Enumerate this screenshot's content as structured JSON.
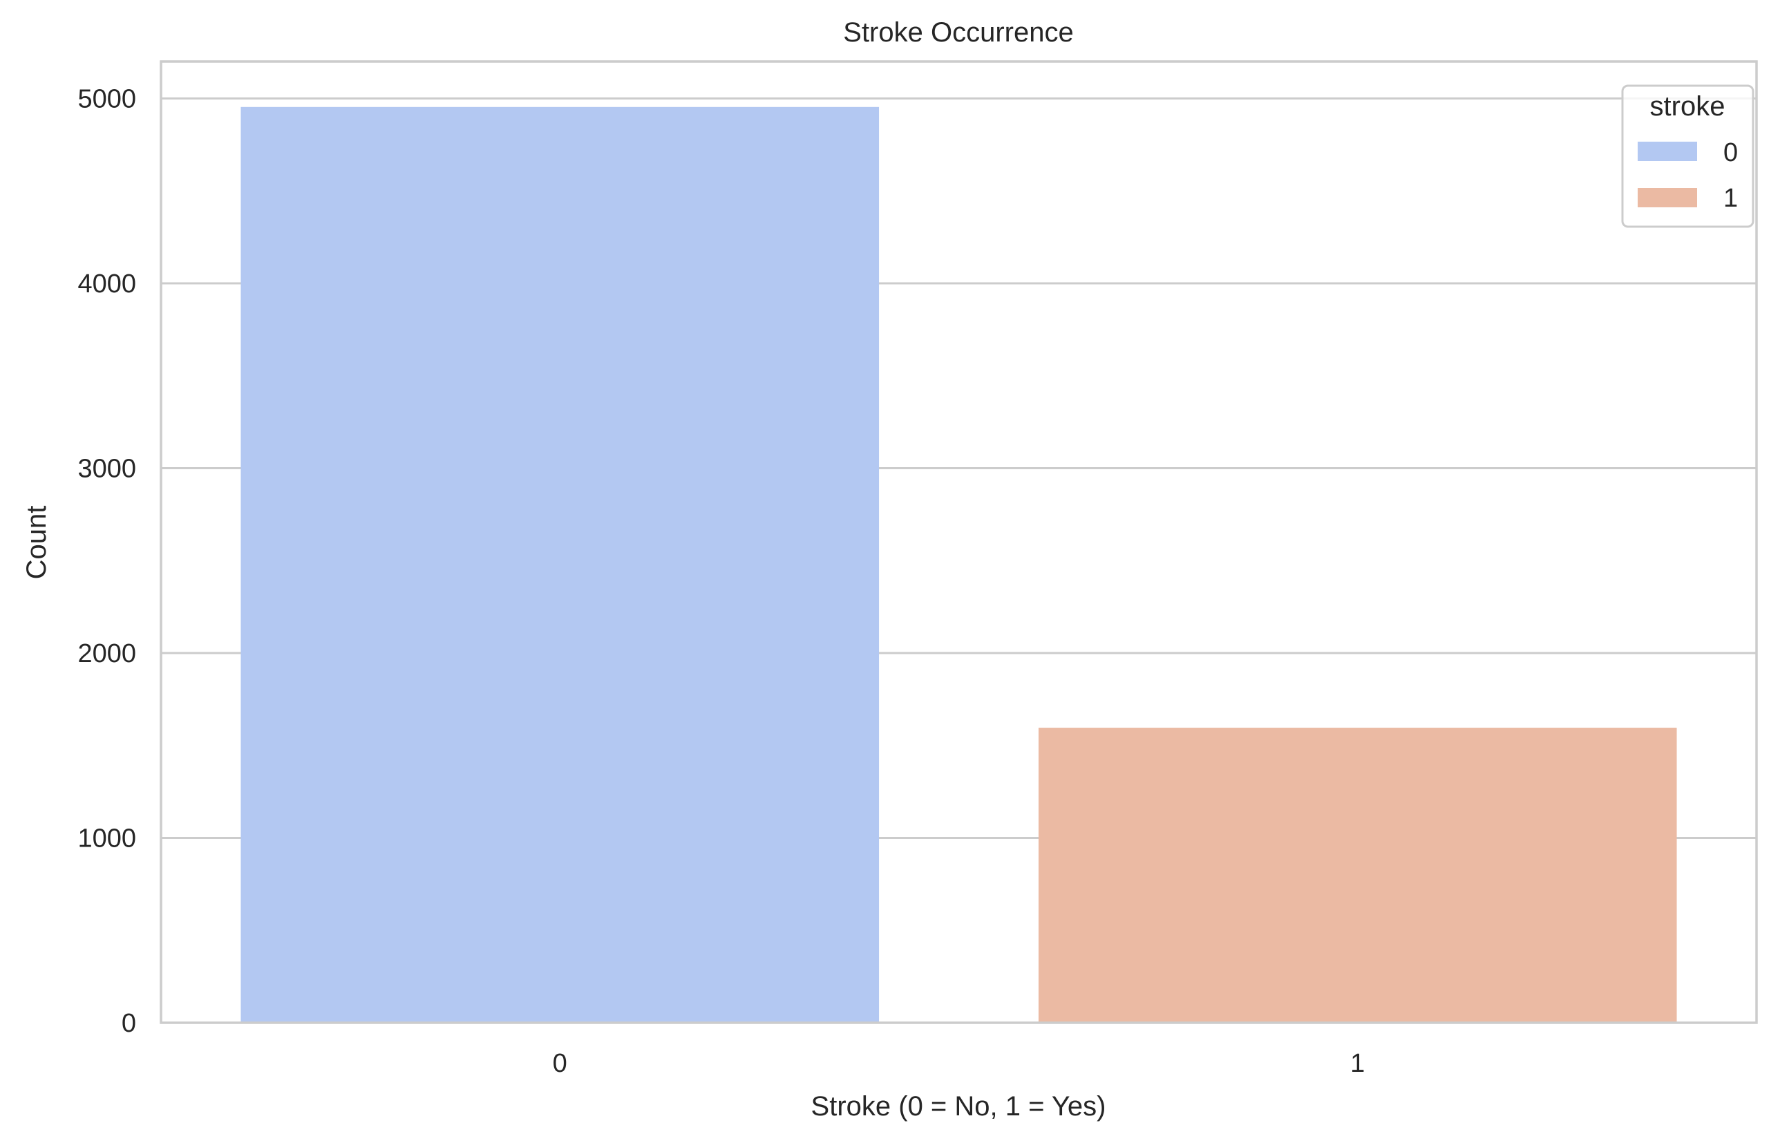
{
  "chart_data": {
    "type": "bar",
    "title": "Stroke Occurrence",
    "xlabel": "Stroke (0 = No, 1 = Yes)",
    "ylabel": "Count",
    "categories": [
      "0",
      "1"
    ],
    "series": [
      {
        "name": "0",
        "values": [
          4954,
          null
        ],
        "color": "#b3c8f2"
      },
      {
        "name": "1",
        "values": [
          null,
          1596
        ],
        "color": "#ebbaa3"
      }
    ],
    "ylim": [
      0,
      5200
    ],
    "yticks": [
      0,
      1000,
      2000,
      3000,
      4000,
      5000
    ],
    "ytick_labels": [
      "0",
      "1000",
      "2000",
      "3000",
      "4000",
      "5000"
    ],
    "grid": "horizontal",
    "legend": {
      "title": "stroke",
      "placement": "top-right"
    }
  }
}
